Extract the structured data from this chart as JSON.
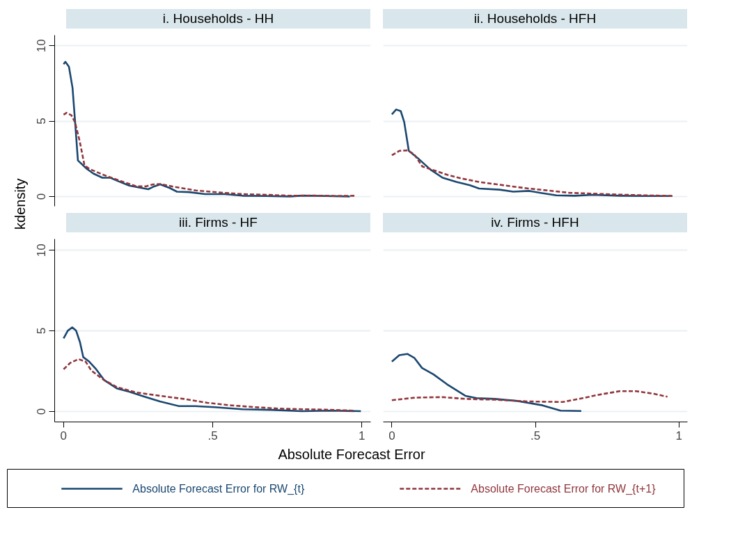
{
  "chart_data": [
    {
      "type": "line",
      "title": "i. Households - HH",
      "xlabel": "Absolute Forecast Error",
      "ylabel": "kdensity",
      "legend": "bottom",
      "grid": "y",
      "tick_labels": "y",
      "xlim": [
        -0.03,
        1.03
      ],
      "ylim": [
        -0.65,
        10.7
      ],
      "yticks": [
        0,
        5,
        10
      ],
      "series": [
        {
          "name": "Absolute Forecast Error for RW_{t}",
          "color": "#1a476f",
          "line_style": "solid",
          "x": [
            0,
            0.006,
            0.018,
            0.03,
            0.038,
            0.048,
            0.078,
            0.1,
            0.13,
            0.157,
            0.18,
            0.22,
            0.25,
            0.284,
            0.3,
            0.324,
            0.356,
            0.38,
            0.42,
            0.475,
            0.54,
            0.6,
            0.68,
            0.76,
            0.8,
            0.88,
            0.96
          ],
          "values": [
            8.77,
            8.93,
            8.6,
            7.2,
            5.1,
            2.39,
            1.83,
            1.52,
            1.24,
            1.24,
            1.04,
            0.72,
            0.61,
            0.48,
            0.64,
            0.8,
            0.56,
            0.32,
            0.29,
            0.16,
            0.16,
            0.05,
            0.03,
            0,
            0.06,
            0.03,
            0
          ]
        },
        {
          "name": "Absolute Forecast Error for RW_{t+1}",
          "color": "#90353b",
          "line_style": "dashed",
          "x": [
            0,
            0.01,
            0.026,
            0.038,
            0.054,
            0.07,
            0.086,
            0.133,
            0.19,
            0.244,
            0.276,
            0.3,
            0.324,
            0.363,
            0.443,
            0.52,
            0.6,
            0.68,
            0.76,
            0.84,
            0.92,
            0.98
          ],
          "values": [
            5.42,
            5.55,
            5.39,
            4.94,
            3.67,
            2.07,
            1.83,
            1.44,
            1.04,
            0.67,
            0.67,
            0.8,
            0.83,
            0.67,
            0.4,
            0.27,
            0.16,
            0.11,
            0.05,
            0.06,
            0.03,
            0.05
          ]
        }
      ]
    },
    {
      "type": "line",
      "title": "ii. Households - HFH",
      "grid": "y",
      "tick_labels": false,
      "xlim": [
        -0.03,
        1.03
      ],
      "yticks": [
        0,
        5,
        10
      ],
      "series": [
        {
          "color": "#1a476f",
          "line_style": "solid",
          "x": [
            0,
            0.015,
            0.031,
            0.043,
            0.051,
            0.059,
            0.09,
            0.134,
            0.177,
            0.225,
            0.272,
            0.304,
            0.375,
            0.423,
            0.478,
            0.518,
            0.573,
            0.637,
            0.7,
            0.795,
            0.874,
            0.977
          ],
          "values": [
            5.45,
            5.77,
            5.66,
            4.94,
            3.99,
            3.03,
            2.55,
            1.79,
            1.24,
            0.96,
            0.75,
            0.53,
            0.45,
            0.32,
            0.37,
            0.24,
            0.08,
            0.05,
            0.11,
            0.05,
            0.03,
            0.03
          ]
        },
        {
          "color": "#90353b",
          "line_style": "dashed",
          "x": [
            0,
            0.027,
            0.055,
            0.078,
            0.106,
            0.138,
            0.193,
            0.241,
            0.304,
            0.367,
            0.462,
            0.542,
            0.621,
            0.7,
            0.779,
            0.874,
            0.977
          ],
          "values": [
            2.74,
            3.03,
            3.06,
            2.79,
            1.99,
            1.79,
            1.44,
            1.2,
            0.96,
            0.8,
            0.56,
            0.4,
            0.24,
            0.19,
            0.13,
            0.08,
            0.03
          ]
        }
      ]
    },
    {
      "type": "line",
      "title": "iii. Firms - HF",
      "grid": "y",
      "xlim": [
        -0.03,
        1.03
      ],
      "ylim": [
        -0.65,
        10.7
      ],
      "xticks": [
        0,
        {
          "value": 0.5,
          "label": ".5"
        },
        1
      ],
      "yticks": [
        0,
        5,
        10
      ],
      "series": [
        {
          "color": "#1a476f",
          "line_style": "solid",
          "x": [
            0,
            0.014,
            0.029,
            0.042,
            0.055,
            0.066,
            0.086,
            0.109,
            0.137,
            0.18,
            0.22,
            0.268,
            0.323,
            0.387,
            0.442,
            0.505,
            0.6,
            0.696,
            0.799,
            0.894,
            0.997
          ],
          "values": [
            4.53,
            5.01,
            5.22,
            5.01,
            4.29,
            3.37,
            3.09,
            2.62,
            1.93,
            1.42,
            1.23,
            0.94,
            0.62,
            0.33,
            0.33,
            0.27,
            0.14,
            0.1,
            0.02,
            0.05,
            0.02
          ]
        },
        {
          "color": "#90353b",
          "line_style": "dashed",
          "x": [
            0,
            0.022,
            0.05,
            0.074,
            0.093,
            0.133,
            0.18,
            0.244,
            0.323,
            0.403,
            0.482,
            0.561,
            0.64,
            0.72,
            0.799,
            0.878,
            0.977
          ],
          "values": [
            2.62,
            3.01,
            3.25,
            3.09,
            2.54,
            1.98,
            1.5,
            1.18,
            0.97,
            0.78,
            0.54,
            0.38,
            0.27,
            0.18,
            0.14,
            0.11,
            0.05
          ]
        }
      ]
    },
    {
      "type": "line",
      "title": "iv. Firms - HFH",
      "grid": "y",
      "tick_labels": "x",
      "xlim": [
        -0.03,
        1.03
      ],
      "xticks": [
        0,
        {
          "value": 0.5,
          "label": ".5"
        },
        1
      ],
      "yticks": [
        0,
        5,
        10
      ],
      "series": [
        {
          "color": "#1a476f",
          "line_style": "solid",
          "x": [
            0,
            0.026,
            0.054,
            0.078,
            0.105,
            0.145,
            0.192,
            0.256,
            0.295,
            0.359,
            0.438,
            0.525,
            0.588,
            0.66
          ],
          "values": [
            3.09,
            3.49,
            3.57,
            3.33,
            2.7,
            2.3,
            1.69,
            0.97,
            0.83,
            0.78,
            0.65,
            0.38,
            0.05,
            0.03
          ]
        },
        {
          "color": "#90353b",
          "line_style": "dashed",
          "x": [
            0,
            0.082,
            0.177,
            0.256,
            0.359,
            0.477,
            0.596,
            0.66,
            0.715,
            0.794,
            0.85,
            0.913,
            0.96
          ],
          "values": [
            0.7,
            0.86,
            0.89,
            0.78,
            0.73,
            0.62,
            0.59,
            0.81,
            1.02,
            1.26,
            1.26,
            1.1,
            0.91
          ]
        }
      ]
    }
  ]
}
